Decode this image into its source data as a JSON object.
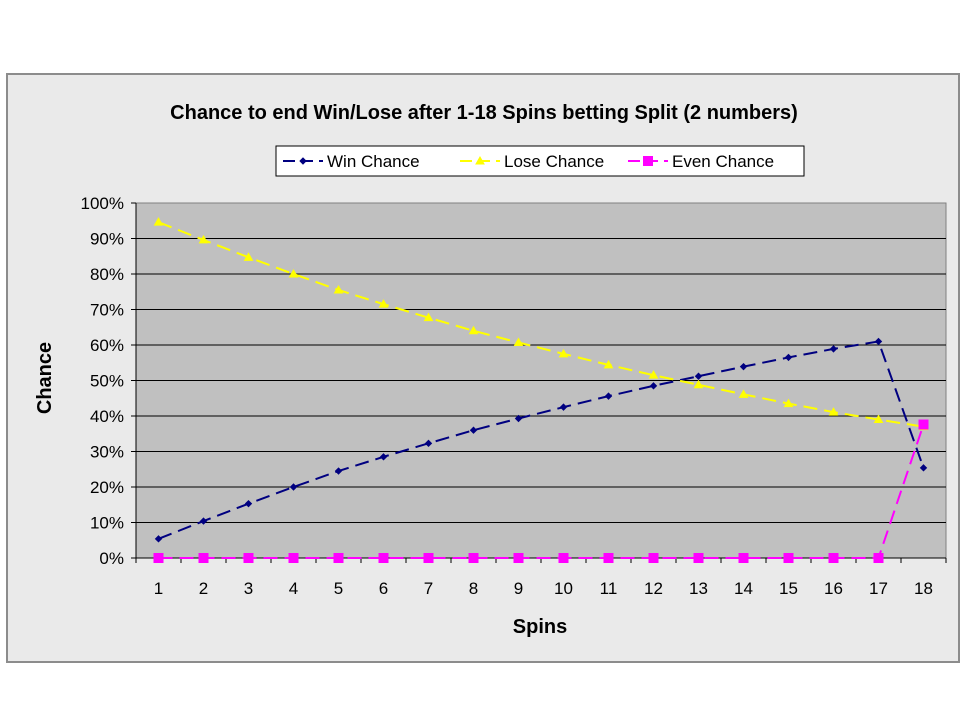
{
  "chart_data": {
    "type": "line",
    "title": "Chance to end Win/Lose after 1-18 Spins betting Split (2 numbers)",
    "xlabel": "Spins",
    "ylabel": "Chance",
    "categories": [
      "1",
      "2",
      "3",
      "4",
      "5",
      "6",
      "7",
      "8",
      "9",
      "10",
      "11",
      "12",
      "13",
      "14",
      "15",
      "16",
      "17",
      "18"
    ],
    "yticks": [
      "0%",
      "10%",
      "20%",
      "30%",
      "40%",
      "50%",
      "60%",
      "70%",
      "80%",
      "90%",
      "100%"
    ],
    "ylim": [
      0,
      100
    ],
    "grid": true,
    "legend_position": "top",
    "plot_background": "#c0c0c0",
    "series": [
      {
        "name": "Win Chance",
        "color": "#000080",
        "marker": "diamond",
        "values": [
          5.4,
          10.4,
          15.3,
          20.0,
          24.5,
          28.5,
          32.3,
          36.0,
          39.3,
          42.5,
          45.6,
          48.5,
          51.2,
          53.9,
          56.5,
          58.9,
          61.0,
          25.4
        ]
      },
      {
        "name": "Lose Chance",
        "color": "#ffff00",
        "marker": "triangle",
        "values": [
          94.6,
          89.6,
          84.7,
          80.0,
          75.5,
          71.5,
          67.7,
          64.0,
          60.7,
          57.5,
          54.4,
          51.5,
          48.8,
          46.1,
          43.5,
          41.1,
          39.0,
          37.0
        ]
      },
      {
        "name": "Even Chance",
        "color": "#ff00ff",
        "marker": "square",
        "values": [
          0,
          0,
          0,
          0,
          0,
          0,
          0,
          0,
          0,
          0,
          0,
          0,
          0,
          0,
          0,
          0,
          0,
          37.6
        ]
      }
    ]
  }
}
